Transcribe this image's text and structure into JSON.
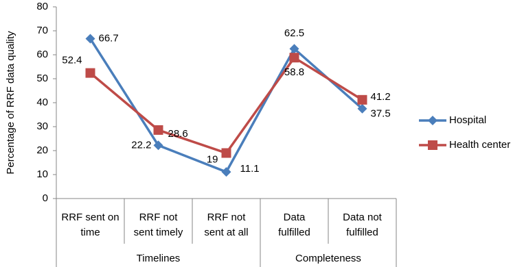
{
  "chart_data": {
    "type": "line",
    "y_label": "Percentage of RRF data quality",
    "categories": [
      "RRF sent on\ntime",
      "RRF not\nsent timely",
      "RRF not\nsent at all",
      "Data\nfulfilled",
      "Data not\nfulfilled"
    ],
    "groups": [
      {
        "label": "Timelines",
        "count": 3
      },
      {
        "label": "Completeness",
        "count": 2
      }
    ],
    "series": [
      {
        "name": "Hospital",
        "color": "#4a7ebb",
        "marker": "diamond",
        "values": [
          66.7,
          22.2,
          11.1,
          62.5,
          37.5
        ]
      },
      {
        "name": "Health center",
        "color": "#be4b48",
        "marker": "square",
        "values": [
          52.4,
          28.6,
          19,
          58.8,
          41.2
        ]
      }
    ],
    "ylim": [
      0,
      80
    ],
    "yticks": [
      0,
      10,
      20,
      30,
      40,
      50,
      60,
      70,
      80
    ],
    "legend": "right"
  }
}
